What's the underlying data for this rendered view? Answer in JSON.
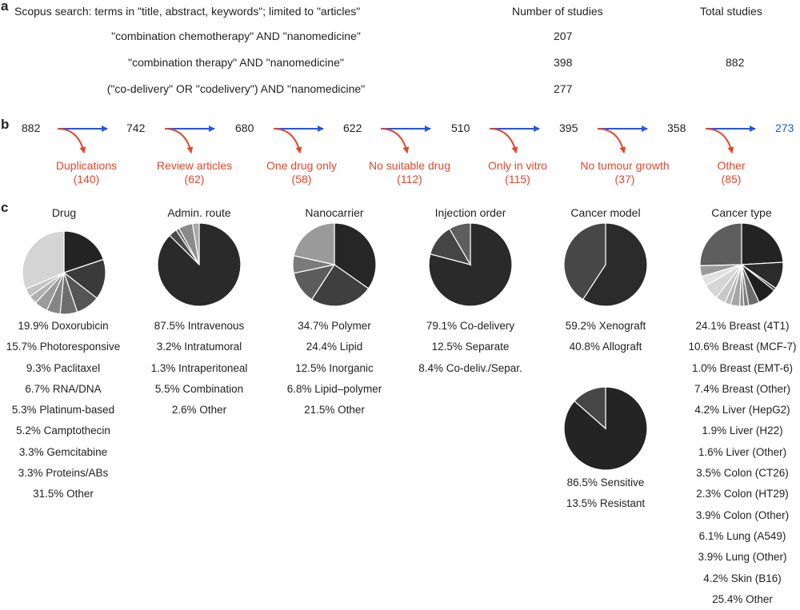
{
  "panel_a": {
    "label": "a",
    "header_search": "Scopus search: terms in \"title, abstract, keywords\"; limited to \"articles\"",
    "header_count": "Number of studies",
    "header_total": "Total studies",
    "rows": [
      {
        "query": "\"combination chemotherapy\" AND \"nanomedicine\"",
        "count": "207"
      },
      {
        "query": "\"combination therapy\" AND \"nanomedicine\"",
        "count": "398"
      },
      {
        "query": "(\"co-delivery\" OR \"codelivery\") AND \"nanomedicine\"",
        "count": "277"
      }
    ],
    "total": "882"
  },
  "panel_b": {
    "label": "b",
    "counts": [
      "882",
      "742",
      "680",
      "622",
      "510",
      "395",
      "358",
      "273"
    ],
    "exclusions": [
      {
        "reason": "Duplications",
        "n": "(140)"
      },
      {
        "reason": "Review articles",
        "n": "(62)"
      },
      {
        "reason": "One drug only",
        "n": "(58)"
      },
      {
        "reason": "No suitable drug",
        "n": "(112)"
      },
      {
        "reason": "Only in vitro",
        "n": "(115)"
      },
      {
        "reason": "No tumour growth",
        "n": "(37)"
      },
      {
        "reason": "Other",
        "n": "(85)"
      }
    ],
    "colors": {
      "flow": "#2456e6",
      "exclusion": "#e8452b",
      "final": "#2456e6"
    }
  },
  "panel_c": {
    "label": "c",
    "charts": [
      {
        "title": "Drug",
        "legend": [
          "19.9% Doxorubicin",
          "15.7% Photoresponsive",
          "9.3% Paclitaxel",
          "6.7% RNA/DNA",
          "5.3% Platinum-based",
          "5.2% Camptothecin",
          "3.3% Gemcitabine",
          "3.3% Proteins/ABs",
          "31.5% Other"
        ]
      },
      {
        "title": "Admin. route",
        "legend": [
          "87.5% Intravenous",
          "3.2% Intratumoral",
          "1.3% Intraperitoneal",
          "5.5% Combination",
          "2.6% Other"
        ]
      },
      {
        "title": "Nanocarrier",
        "legend": [
          "34.7% Polymer",
          "24.4% Lipid",
          "12.5% Inorganic",
          "6.8% Lipid–polymer",
          "21.5% Other"
        ]
      },
      {
        "title": "Injection order",
        "legend": [
          "79.1% Co-delivery",
          "12.5% Separate",
          "8.4% Co-deliv./Separ."
        ]
      },
      {
        "title": "Cancer model",
        "legend": [
          "59.2% Xenograft",
          "40.8% Allograft"
        ],
        "legend2": [
          "86.5% Sensitive",
          "13.5% Resistant"
        ]
      },
      {
        "title": "Cancer type",
        "legend": [
          "24.1% Breast (4T1)",
          "10.6% Breast (MCF-7)",
          "1.0% Breast (EMT-6)",
          "7.4% Breast (Other)",
          "4.2% Liver (HepG2)",
          "1.9% Liver (H22)",
          "1.6% Liver (Other)",
          "3.5% Colon (CT26)",
          "2.3% Colon (HT29)",
          "3.9% Colon (Other)",
          "6.1% Lung (A549)",
          "3.9% Lung (Other)",
          "4.2% Skin (B16)",
          "25.4% Other"
        ]
      }
    ]
  },
  "chart_data": [
    {
      "type": "pie",
      "title": "Drug",
      "labels": [
        "Doxorubicin",
        "Photoresponsive",
        "Paclitaxel",
        "RNA/DNA",
        "Platinum-based",
        "Camptothecin",
        "Gemcitabine",
        "Proteins/ABs",
        "Other"
      ],
      "values": [
        19.9,
        15.7,
        9.3,
        6.7,
        5.3,
        5.2,
        3.3,
        3.3,
        31.5
      ],
      "colors": [
        "#232323",
        "#3a3a3a",
        "#555555",
        "#6e6e6e",
        "#858585",
        "#9b9b9b",
        "#b0b0b0",
        "#c3c3c3",
        "#d4d4d4"
      ]
    },
    {
      "type": "pie",
      "title": "Admin. route",
      "labels": [
        "Intravenous",
        "Intratumoral",
        "Intraperitoneal",
        "Combination",
        "Other"
      ],
      "values": [
        87.5,
        3.2,
        1.3,
        5.5,
        2.6
      ],
      "colors": [
        "#2a2a2a",
        "#4a4a4a",
        "#6a6a6a",
        "#8a8a8a",
        "#a8a8a8"
      ]
    },
    {
      "type": "pie",
      "title": "Nanocarrier",
      "labels": [
        "Polymer",
        "Lipid",
        "Inorganic",
        "Lipid–polymer",
        "Other"
      ],
      "values": [
        34.7,
        24.4,
        12.5,
        6.8,
        21.5
      ],
      "colors": [
        "#262626",
        "#3f3f3f",
        "#5c5c5c",
        "#7a7a7a",
        "#9a9a9a"
      ]
    },
    {
      "type": "pie",
      "title": "Injection order",
      "labels": [
        "Co-delivery",
        "Separate",
        "Co-deliv./Separ."
      ],
      "values": [
        79.1,
        12.5,
        8.4
      ],
      "colors": [
        "#2a2a2a",
        "#454545",
        "#5e5e5e"
      ]
    },
    {
      "type": "pie",
      "title": "Cancer model",
      "labels": [
        "Xenograft",
        "Allograft"
      ],
      "values": [
        59.2,
        40.8
      ],
      "colors": [
        "#2b2b2b",
        "#474747"
      ]
    },
    {
      "type": "pie",
      "title": "",
      "labels": [
        "Sensitive",
        "Resistant"
      ],
      "values": [
        86.5,
        13.5
      ],
      "colors": [
        "#242424",
        "#474747"
      ]
    },
    {
      "type": "pie",
      "title": "Cancer type",
      "labels": [
        "Breast (4T1)",
        "Breast (MCF-7)",
        "Breast (EMT-6)",
        "Breast (Other)",
        "Liver (HepG2)",
        "Liver (H22)",
        "Liver (Other)",
        "Colon (CT26)",
        "Colon (HT29)",
        "Colon (Other)",
        "Lung (A549)",
        "Lung (Other)",
        "Skin (B16)",
        "Other"
      ],
      "values": [
        24.1,
        10.6,
        1.0,
        7.4,
        4.2,
        1.9,
        1.6,
        3.5,
        2.3,
        3.9,
        6.1,
        3.9,
        4.2,
        25.4
      ],
      "colors": [
        "#232323",
        "#2b2b2b",
        "#333333",
        "#1f1f1f",
        "#6c6c6c",
        "#7e7e7e",
        "#8f8f8f",
        "#a6a6a6",
        "#b7b7b7",
        "#c8c8c8",
        "#d6d6d6",
        "#e2e2e2",
        "#9a9a9a",
        "#5e5e5e"
      ]
    }
  ]
}
